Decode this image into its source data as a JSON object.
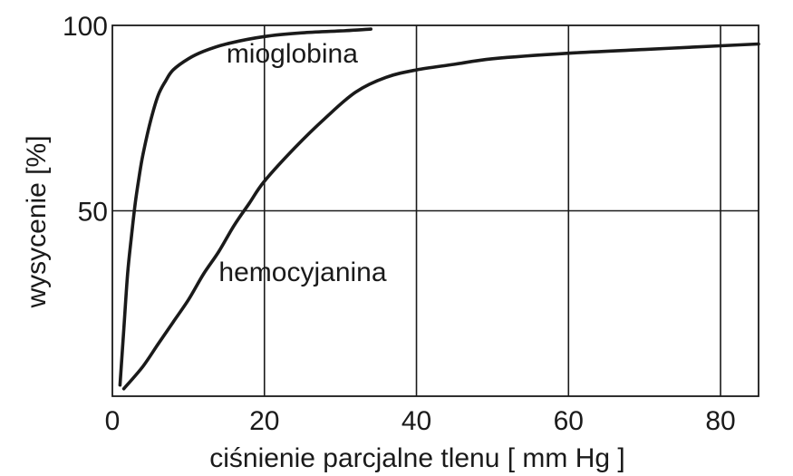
{
  "chart_data": {
    "type": "line",
    "title": "",
    "xlabel": "ciśnienie parcjalne tlenu [ mm Hg ]",
    "ylabel": "wysycenie [%]",
    "xlim": [
      0,
      85
    ],
    "ylim": [
      0,
      100
    ],
    "x_ticks": [
      "0",
      "20",
      "40",
      "60",
      "80"
    ],
    "y_ticks": [
      "50",
      "100"
    ],
    "grid": true,
    "series": [
      {
        "name": "mioglobina",
        "x": [
          1.0,
          1.5,
          2.0,
          2.5,
          3.0,
          3.5,
          4.0,
          5.0,
          6.0,
          7.0,
          8.0,
          10.0,
          12.0,
          15.0,
          20.0,
          25.0,
          30.0,
          34.0
        ],
        "y": [
          3,
          18,
          33,
          43,
          52,
          59,
          65,
          74,
          81,
          85,
          88,
          91,
          93,
          95,
          97,
          98,
          98.5,
          99
        ]
      },
      {
        "name": "hemocyjanina",
        "x": [
          1.5,
          4.0,
          6.0,
          8.0,
          10.0,
          12.0,
          14.0,
          16.0,
          18.0,
          20.0,
          24.0,
          28.0,
          32.0,
          36.0,
          40.0,
          45.0,
          50.0,
          60.0,
          70.0,
          80.0,
          85.0
        ],
        "y": [
          2,
          8,
          14,
          20,
          26,
          33,
          39,
          46,
          52,
          58,
          67,
          75,
          82,
          86,
          88,
          89.5,
          91,
          92.5,
          93.5,
          94.5,
          95
        ]
      }
    ],
    "annotations": [
      {
        "text": "mioglobina",
        "x": 15,
        "y": 90
      },
      {
        "text": "hemocyjanina",
        "x": 14,
        "y": 31
      }
    ]
  }
}
